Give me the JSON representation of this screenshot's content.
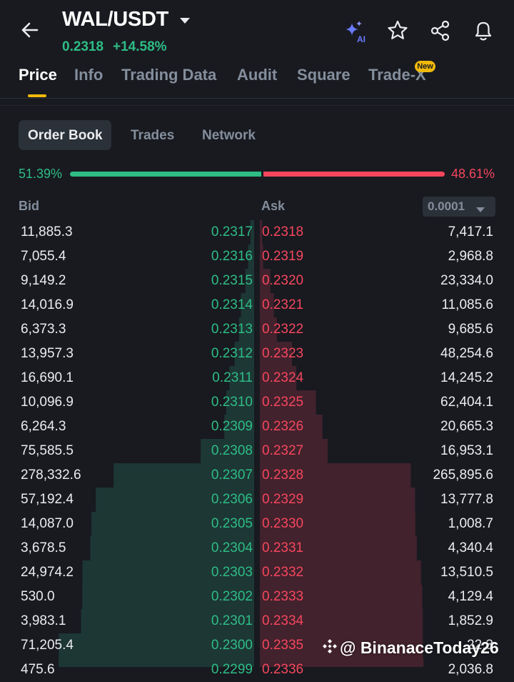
{
  "header": {
    "pair": "WAL/USDT",
    "last_price": "0.2318",
    "change": "+14.58%"
  },
  "tabs": [
    {
      "label": "Price",
      "active": true
    },
    {
      "label": "Info"
    },
    {
      "label": "Trading Data"
    },
    {
      "label": "Audit"
    },
    {
      "label": "Square"
    },
    {
      "label": "Trade-X",
      "badge": "New"
    }
  ],
  "sub_tabs": [
    {
      "label": "Order Book",
      "active": true
    },
    {
      "label": "Trades"
    },
    {
      "label": "Network"
    }
  ],
  "ratio": {
    "bid": "51.39%",
    "ask": "48.61%",
    "bid_fraction": 0.5139
  },
  "columns": {
    "bid": "Bid",
    "ask": "Ask",
    "precision": "0.0001"
  },
  "icons": {
    "back": "arrow-left-icon",
    "dropdown": "caret-down-icon",
    "ai": "ai-sparkle-icon",
    "favorite": "star-icon",
    "share": "share-icon",
    "alert": "bell-icon",
    "watermark": "binance-logo-icon"
  },
  "colors": {
    "bid": "#2ebd85",
    "ask": "#f6465d",
    "accent": "#f0b90b",
    "background": "#181a20"
  },
  "order_book": [
    {
      "bid_qty": "11,885.3",
      "bid_price": "0.2317",
      "ask_price": "0.2318",
      "ask_qty": "7,417.1"
    },
    {
      "bid_qty": "7,055.4",
      "bid_price": "0.2316",
      "ask_price": "0.2319",
      "ask_qty": "2,968.8"
    },
    {
      "bid_qty": "9,149.2",
      "bid_price": "0.2315",
      "ask_price": "0.2320",
      "ask_qty": "23,334.0"
    },
    {
      "bid_qty": "14,016.9",
      "bid_price": "0.2314",
      "ask_price": "0.2321",
      "ask_qty": "11,085.6"
    },
    {
      "bid_qty": "6,373.3",
      "bid_price": "0.2313",
      "ask_price": "0.2322",
      "ask_qty": "9,685.6"
    },
    {
      "bid_qty": "13,957.3",
      "bid_price": "0.2312",
      "ask_price": "0.2323",
      "ask_qty": "48,254.6"
    },
    {
      "bid_qty": "16,690.1",
      "bid_price": "0.2311",
      "ask_price": "0.2324",
      "ask_qty": "14,245.2"
    },
    {
      "bid_qty": "10,096.9",
      "bid_price": "0.2310",
      "ask_price": "0.2325",
      "ask_qty": "62,404.1"
    },
    {
      "bid_qty": "6,264.3",
      "bid_price": "0.2309",
      "ask_price": "0.2326",
      "ask_qty": "20,665.3"
    },
    {
      "bid_qty": "75,585.5",
      "bid_price": "0.2308",
      "ask_price": "0.2327",
      "ask_qty": "16,953.1"
    },
    {
      "bid_qty": "278,332.6",
      "bid_price": "0.2307",
      "ask_price": "0.2328",
      "ask_qty": "265,895.6"
    },
    {
      "bid_qty": "57,192.4",
      "bid_price": "0.2306",
      "ask_price": "0.2329",
      "ask_qty": "13,777.8"
    },
    {
      "bid_qty": "14,087.0",
      "bid_price": "0.2305",
      "ask_price": "0.2330",
      "ask_qty": "1,008.7"
    },
    {
      "bid_qty": "3,678.5",
      "bid_price": "0.2304",
      "ask_price": "0.2331",
      "ask_qty": "4,340.4"
    },
    {
      "bid_qty": "24,974.2",
      "bid_price": "0.2303",
      "ask_price": "0.2332",
      "ask_qty": "13,510.5"
    },
    {
      "bid_qty": "530.0",
      "bid_price": "0.2302",
      "ask_price": "0.2333",
      "ask_qty": "4,129.4"
    },
    {
      "bid_qty": "3,983.1",
      "bid_price": "0.2301",
      "ask_price": "0.2334",
      "ask_qty": "1,852.9"
    },
    {
      "bid_qty": "71,205.4",
      "bid_price": "0.2300",
      "ask_price": "0.2335",
      "ask_qty": "22.3"
    },
    {
      "bid_qty": "475.6",
      "bid_price": "0.2299",
      "ask_price": "0.2336",
      "ask_qty": "2,036.8"
    }
  ],
  "watermark": "@ BinanaceToday26"
}
